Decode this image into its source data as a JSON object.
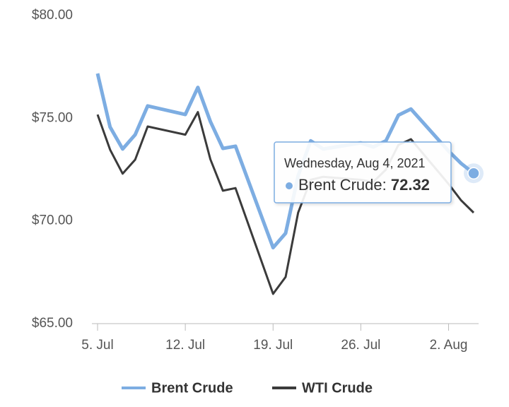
{
  "chart_data": {
    "type": "line",
    "x": [
      "2021-07-05",
      "2021-07-06",
      "2021-07-07",
      "2021-07-08",
      "2021-07-09",
      "2021-07-12",
      "2021-07-13",
      "2021-07-14",
      "2021-07-15",
      "2021-07-16",
      "2021-07-19",
      "2021-07-20",
      "2021-07-21",
      "2021-07-22",
      "2021-07-23",
      "2021-07-26",
      "2021-07-27",
      "2021-07-28",
      "2021-07-29",
      "2021-07-30",
      "2021-08-02",
      "2021-08-03",
      "2021-08-04"
    ],
    "series": [
      {
        "name": "Brent Crude",
        "color": "#7dade2",
        "values": [
          77.18,
          74.57,
          73.5,
          74.2,
          75.6,
          75.18,
          76.5,
          74.84,
          73.53,
          73.64,
          68.7,
          69.4,
          72.2,
          73.9,
          73.5,
          73.8,
          73.6,
          73.9,
          75.15,
          75.45,
          73.4,
          72.8,
          72.32
        ]
      },
      {
        "name": "WTI Crude",
        "color": "#3b3b3b",
        "values": [
          75.18,
          73.47,
          72.3,
          72.98,
          74.6,
          74.2,
          75.3,
          73.0,
          71.47,
          71.6,
          66.45,
          67.27,
          70.4,
          72.0,
          72.15,
          72.0,
          71.9,
          72.5,
          73.7,
          73.98,
          71.8,
          71.0,
          70.4
        ]
      }
    ],
    "xlim": [
      "2021-07-05",
      "2021-08-04"
    ],
    "xticks": [
      {
        "value": "2021-07-05",
        "label": "5. Jul"
      },
      {
        "value": "2021-07-12",
        "label": "12. Jul"
      },
      {
        "value": "2021-07-19",
        "label": "19. Jul"
      },
      {
        "value": "2021-07-26",
        "label": "26. Jul"
      },
      {
        "value": "2021-08-02",
        "label": "2. Aug"
      }
    ],
    "ylim": [
      65,
      80
    ],
    "yticks": [
      {
        "value": 65,
        "label": "$65.00"
      },
      {
        "value": 70,
        "label": "$70.00"
      },
      {
        "value": 75,
        "label": "$75.00"
      },
      {
        "value": 80,
        "label": "$80.00"
      }
    ],
    "grid": true,
    "legend": "bottom",
    "tooltip": {
      "title": "Wednesday, Aug 4, 2021"
    }
  }
}
